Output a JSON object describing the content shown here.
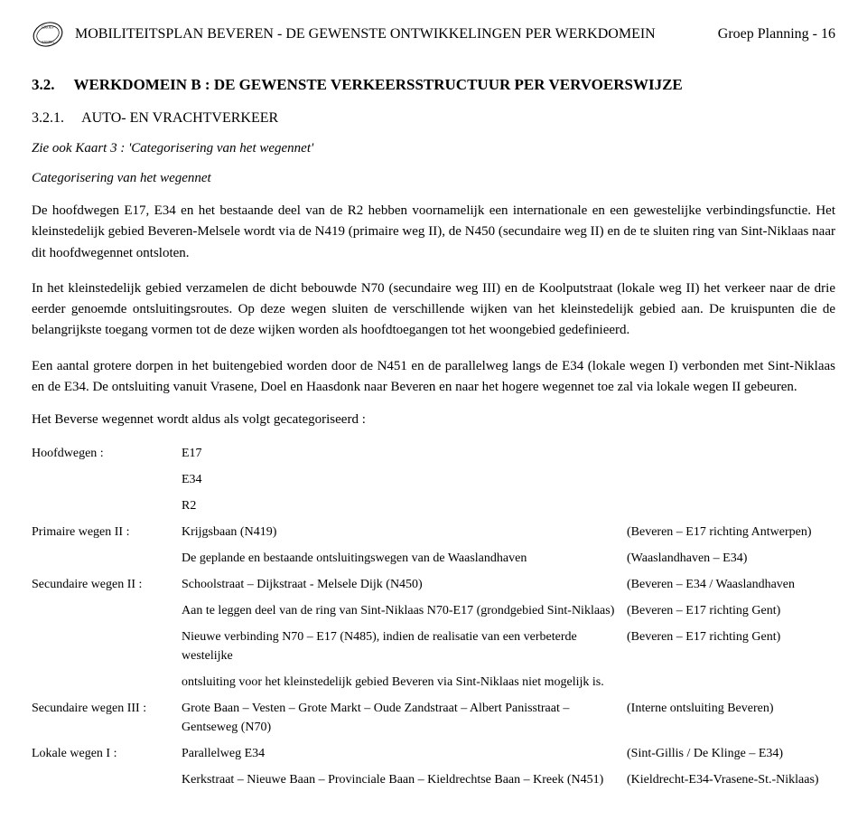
{
  "header": {
    "title_left": "MOBILITEITSPLAN BEVEREN - DE GEWENSTE ONTWIKKELINGEN PER WERKDOMEIN",
    "title_right": "Groep Planning - 16"
  },
  "section": {
    "number": "3.2.",
    "title": "WERKDOMEIN B : DE GEWENSTE VERKEERSSTRUCTUUR PER VERVOERSWIJZE"
  },
  "subsection": {
    "number": "3.2.1.",
    "title": "AUTO- EN VRACHTVERKEER"
  },
  "note_italic": "Zie ook Kaart 3 : 'Categorisering van het wegennet'",
  "subheading_italic": "Categorisering van het wegennet",
  "para1": "De hoofdwegen E17, E34 en het bestaande deel van de R2 hebben voornamelijk een internationale en een gewestelijke verbindingsfunctie. Het kleinstedelijk gebied Beveren-Melsele wordt via de N419 (primaire weg II), de N450 (secundaire weg II) en de te sluiten ring van Sint-Niklaas naar dit hoofdwegennet ontsloten.",
  "para2": "In het kleinstedelijk gebied verzamelen de dicht bebouwde N70 (secundaire weg III) en de Koolputstraat (lokale weg II) het verkeer naar de drie eerder genoemde ontsluitingsroutes. Op deze wegen sluiten de verschillende wijken van het kleinstedelijk gebied aan. De kruispunten die de belangrijkste toegang vormen tot de deze wijken worden als hoofdtoegangen tot het woongebied gedefinieerd.",
  "para3": "Een aantal grotere dorpen in het buitengebied worden door de N451 en de parallelweg langs de E34 (lokale wegen I) verbonden met Sint-Niklaas en de E34. De ontsluiting vanuit Vrasene, Doel en Haasdonk naar Beveren en naar het hogere wegennet toe zal via lokale wegen II gebeuren.",
  "cat_intro": "Het Beverse wegennet wordt aldus als volgt gecategoriseerd :",
  "roads": [
    {
      "label": "Hoofdwegen :",
      "desc": "E17",
      "paren": ""
    },
    {
      "label": "",
      "desc": "E34",
      "paren": ""
    },
    {
      "label": "",
      "desc": "R2",
      "paren": ""
    },
    {
      "label": "Primaire wegen II :",
      "desc": "Krijgsbaan (N419)",
      "paren": "(Beveren – E17 richting Antwerpen)"
    },
    {
      "label": "",
      "desc": "De geplande en bestaande ontsluitingswegen van de Waaslandhaven",
      "paren": "(Waaslandhaven – E34)"
    },
    {
      "label": "Secundaire wegen II :",
      "desc": "Schoolstraat – Dijkstraat - Melsele Dijk (N450)",
      "paren": "(Beveren – E34 / Waaslandhaven"
    },
    {
      "label": "",
      "desc": "Aan te leggen deel van de ring van Sint-Niklaas N70-E17 (grondgebied Sint-Niklaas)",
      "paren": "(Beveren – E17 richting Gent)"
    },
    {
      "label": "",
      "desc": "Nieuwe verbinding N70 – E17 (N485), indien de realisatie van een verbeterde westelijke",
      "paren": "(Beveren – E17 richting Gent)"
    },
    {
      "label": "",
      "desc": "ontsluiting voor het kleinstedelijk gebied Beveren via Sint-Niklaas niet mogelijk is.",
      "paren": ""
    },
    {
      "label": "Secundaire wegen III :",
      "desc": "Grote Baan – Vesten – Grote Markt – Oude Zandstraat – Albert Panisstraat – Gentseweg (N70)",
      "paren": "(Interne ontsluiting Beveren)"
    },
    {
      "label": "Lokale wegen I :",
      "desc": "Parallelweg E34",
      "paren": "(Sint-Gillis / De Klinge – E34)"
    },
    {
      "label": "",
      "desc": "Kerkstraat – Nieuwe Baan – Provinciale Baan – Kieldrechtse Baan – Kreek (N451)",
      "paren": "(Kieldrecht-E34-Vrasene-St.-Niklaas)"
    }
  ]
}
